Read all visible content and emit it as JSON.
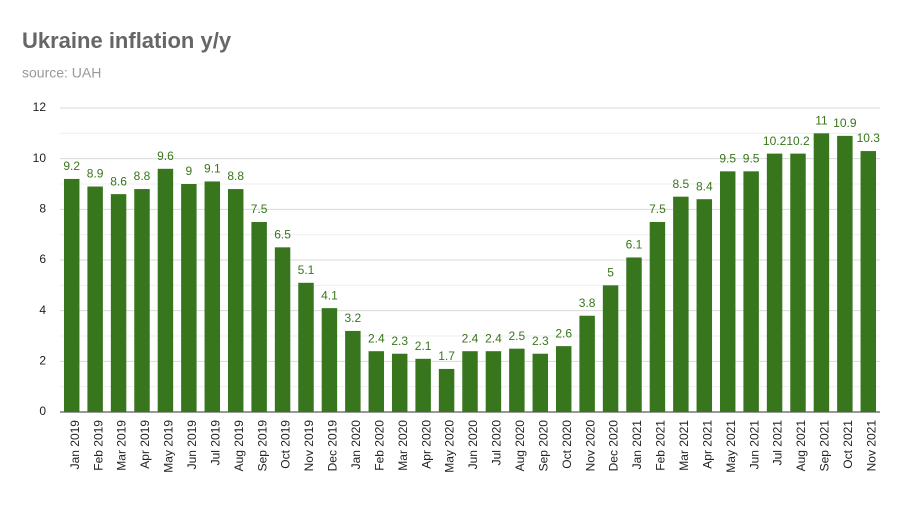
{
  "chart_data": {
    "type": "bar",
    "title": "Ukraine inflation y/y",
    "subtitle": "source: UAH",
    "categories": [
      "Jan 2019",
      "Feb 2019",
      "Mar 2019",
      "Apr 2019",
      "May 2019",
      "Jun 2019",
      "Jul 2019",
      "Aug 2019",
      "Sep 2019",
      "Oct 2019",
      "Nov 2019",
      "Dec 2019",
      "Jan 2020",
      "Feb 2020",
      "Mar 2020",
      "Apr 2020",
      "May 2020",
      "Jun 2020",
      "Jul 2020",
      "Aug 2020",
      "Sep 2020",
      "Oct 2020",
      "Nov 2020",
      "Dec 2020",
      "Jan 2021",
      "Feb 2021",
      "Mar 2021",
      "Apr 2021",
      "May 2021",
      "Jun 2021",
      "Jul 2021",
      "Aug 2021",
      "Sep 2021",
      "Oct 2021",
      "Nov 2021"
    ],
    "values": [
      9.2,
      8.9,
      8.6,
      8.8,
      9.6,
      9,
      9.1,
      8.8,
      7.5,
      6.5,
      5.1,
      4.1,
      3.2,
      2.4,
      2.3,
      2.1,
      1.7,
      2.4,
      2.4,
      2.5,
      2.3,
      2.6,
      3.8,
      5,
      6.1,
      7.5,
      8.5,
      8.4,
      9.5,
      9.5,
      10.2,
      10.2,
      11,
      10.9,
      10.3
    ],
    "color": "#38761d",
    "ylim": [
      0,
      12
    ],
    "yticks": [
      0,
      2,
      4,
      6,
      8,
      10,
      12
    ],
    "minor_yticks": [
      1,
      3,
      5,
      7,
      9,
      11
    ],
    "grid": true
  }
}
